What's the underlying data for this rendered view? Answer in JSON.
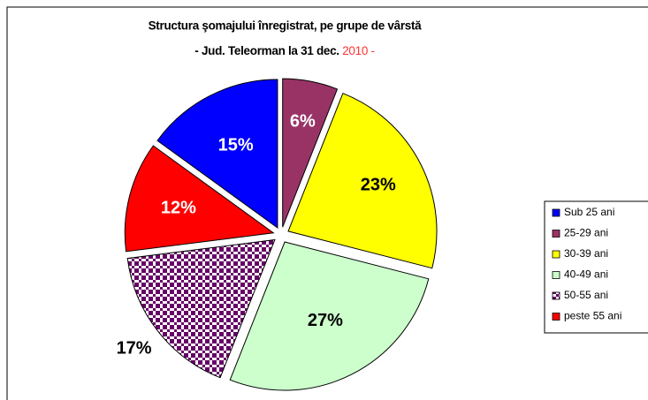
{
  "chart_data": {
    "type": "pie",
    "title": "Structura şomajului înregistrat, pe grupe de vârstă",
    "subtitle": [
      "- Jud. Teleorman  la 31 dec.",
      "2010 -"
    ],
    "categories": [
      "Sub 25 ani",
      "25-29 ani",
      "30-39 ani",
      "40-49 ani",
      "50-55 ani",
      "peste 55 ani"
    ],
    "values": [
      15,
      6,
      23,
      27,
      17,
      12
    ],
    "value_labels": [
      "15%",
      "6%",
      "23%",
      "27%",
      "17%",
      "12%"
    ],
    "colors": [
      "#0000ff",
      "#993366",
      "#ffff00",
      "#ccffcc",
      "#660066",
      "#ff0000"
    ],
    "patterns": [
      null,
      null,
      null,
      null,
      "checker",
      null
    ],
    "legend": "right"
  }
}
